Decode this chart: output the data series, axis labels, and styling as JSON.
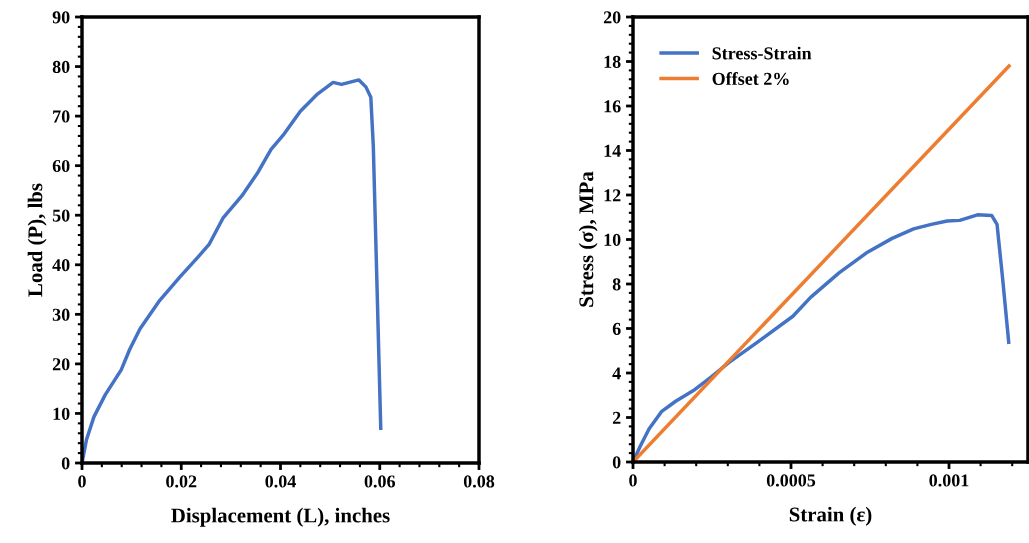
{
  "chart_data": [
    {
      "type": "line",
      "xlabel": "Displacement (L), inches",
      "ylabel": "Load (P), lbs",
      "xlim": [
        0,
        0.08
      ],
      "xticks": [
        0,
        0.02,
        0.04,
        0.06,
        0.08
      ],
      "ylim": [
        0,
        90
      ],
      "yticks": [
        0,
        10,
        20,
        30,
        40,
        50,
        60,
        70,
        80,
        90
      ],
      "grid": false,
      "legend": false,
      "series": [
        {
          "color": "#4472c4",
          "x": [
            0,
            0.0009,
            0.0024,
            0.0047,
            0.0079,
            0.0096,
            0.0117,
            0.0155,
            0.0197,
            0.0235,
            0.0256,
            0.0284,
            0.0322,
            0.0353,
            0.0381,
            0.0405,
            0.044,
            0.0475,
            0.0506,
            0.0523,
            0.0558,
            0.0572,
            0.0582,
            0.0587,
            0.0594,
            0.0602
          ],
          "values": [
            0,
            4.7,
            9.3,
            13.8,
            18.8,
            22.9,
            27.1,
            32.6,
            37.5,
            41.7,
            44.1,
            49.4,
            53.9,
            58.4,
            63.3,
            66.1,
            71,
            74.5,
            76.8,
            76.4,
            77.3,
            75.9,
            73.8,
            64,
            37.5,
            7
          ]
        }
      ]
    },
    {
      "type": "line",
      "xlabel": "Strain (ε)",
      "ylabel": "Stress (σ), MPa",
      "xlim": [
        0,
        0.00125
      ],
      "xticks": [
        0,
        0.0005,
        0.001
      ],
      "ylim": [
        0,
        20
      ],
      "yticks": [
        0,
        2,
        4,
        6,
        8,
        10,
        12,
        14,
        16,
        18,
        20
      ],
      "grid": false,
      "legend": "top left",
      "series": [
        {
          "name": "Stress-Strain",
          "color": "#4472c4",
          "x": [
            0,
            2.25e-05,
            5.06e-05,
            9e-05,
            0.000135,
            0.00019,
            0.000247,
            0.000303,
            0.000393,
            0.000506,
            0.000562,
            0.000652,
            0.000742,
            0.00082,
            0.000888,
            0.000944,
            0.000994,
            0.001034,
            0.00109,
            0.001135,
            0.001152,
            0.001169,
            0.001189
          ],
          "values": [
            0,
            0.7,
            1.48,
            2.26,
            2.73,
            3.2,
            3.82,
            4.47,
            5.38,
            6.55,
            7.4,
            8.5,
            9.43,
            10.05,
            10.48,
            10.68,
            10.83,
            10.86,
            11.11,
            11.08,
            10.68,
            8.34,
            5.38
          ]
        },
        {
          "name": "Offset 2%",
          "color": "#ed7d31",
          "x": [
            0,
            0.00119
          ],
          "values": [
            0,
            17.8
          ]
        }
      ]
    }
  ]
}
